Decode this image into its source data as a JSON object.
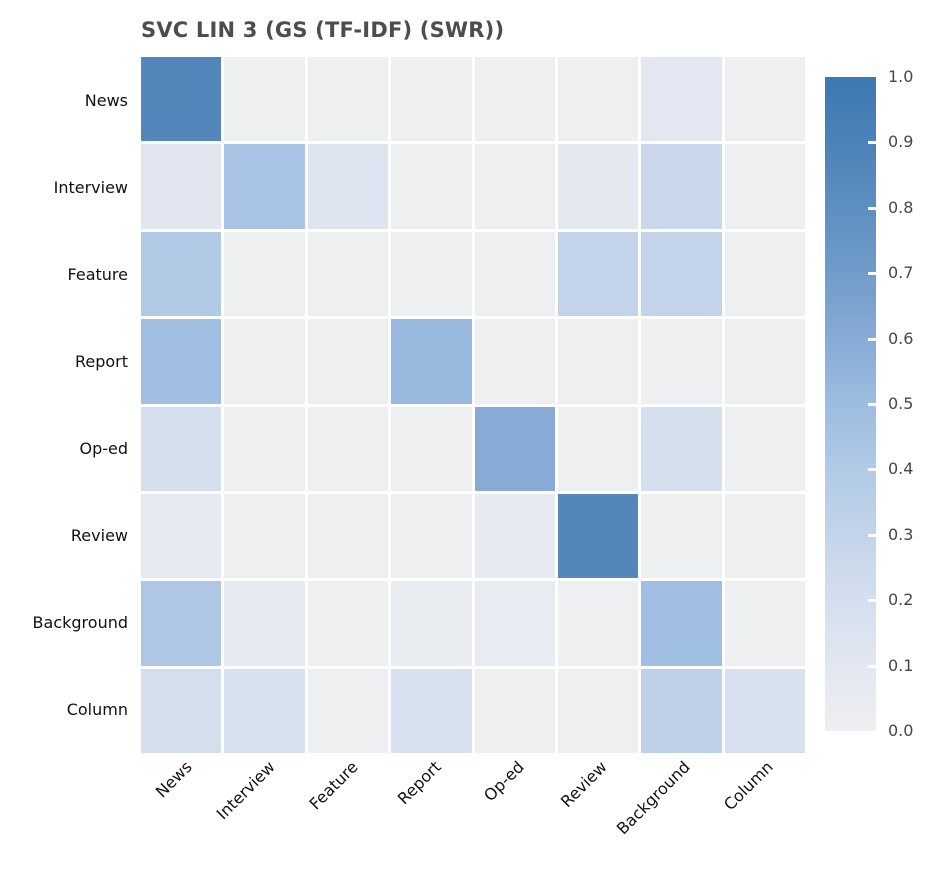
{
  "title": "SVC LIN 3 (GS (TF-IDF) (SWR))",
  "chart_data": {
    "type": "heatmap",
    "title": "SVC LIN 3 (GS (TF-IDF) (SWR))",
    "row_labels": [
      "News",
      "Interview",
      "Feature",
      "Report",
      "Op-ed",
      "Review",
      "Background",
      "Column"
    ],
    "col_labels": [
      "News",
      "Interview",
      "Feature",
      "Report",
      "Op-ed",
      "Review",
      "Background",
      "Column"
    ],
    "matrix": [
      [
        0.86,
        0.0,
        0.0,
        0.0,
        0.0,
        0.0,
        0.1,
        0.0
      ],
      [
        0.11,
        0.44,
        0.12,
        0.0,
        0.0,
        0.09,
        0.27,
        0.0
      ],
      [
        0.4,
        0.0,
        0.0,
        0.0,
        0.0,
        0.3,
        0.3,
        0.0
      ],
      [
        0.48,
        0.0,
        0.0,
        0.52,
        0.0,
        0.0,
        0.0,
        0.0
      ],
      [
        0.19,
        0.0,
        0.0,
        0.0,
        0.6,
        0.0,
        0.19,
        0.0
      ],
      [
        0.06,
        0.0,
        0.0,
        0.0,
        0.06,
        0.86,
        0.0,
        0.0
      ],
      [
        0.42,
        0.06,
        0.0,
        0.04,
        0.05,
        0.0,
        0.48,
        0.0
      ],
      [
        0.2,
        0.17,
        0.0,
        0.18,
        0.0,
        0.0,
        0.33,
        0.17
      ]
    ],
    "value_range": [
      0.0,
      1.0
    ],
    "grid": false,
    "legend_position": "right-colorbar",
    "colorbar_tick_labels": [
      "0.0",
      "0.1",
      "0.2",
      "0.3",
      "0.4",
      "0.5",
      "0.6",
      "0.7",
      "0.8",
      "0.9",
      "1.0"
    ],
    "colormap_stops": [
      {
        "t": 0.0,
        "color": "#eeeff1"
      },
      {
        "t": 0.1,
        "color": "#e2e7f1"
      },
      {
        "t": 0.2,
        "color": "#d4dfee"
      },
      {
        "t": 0.3,
        "color": "#c3d4ea"
      },
      {
        "t": 0.4,
        "color": "#b1cae6"
      },
      {
        "t": 0.5,
        "color": "#9dbce1"
      },
      {
        "t": 0.6,
        "color": "#87abd5"
      },
      {
        "t": 0.7,
        "color": "#709cc9"
      },
      {
        "t": 0.8,
        "color": "#5e8fc0"
      },
      {
        "t": 0.9,
        "color": "#4c82b9"
      },
      {
        "t": 1.0,
        "color": "#3d78b2"
      }
    ]
  },
  "colors": {
    "background": "#ffffff",
    "title_text": "#4d4d4d",
    "axis_label_text": "#111111",
    "colorbar_tick_text": "#474747",
    "cell_gap": "#ffffff"
  }
}
